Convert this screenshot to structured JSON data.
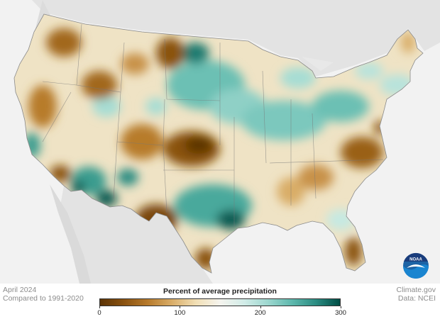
{
  "header": {
    "period": "April 2024",
    "comparison": "Compared to 1991-2020"
  },
  "credits": {
    "site": "Climate.gov",
    "source": "Data: NCEI"
  },
  "legend": {
    "title": "Percent of average precipitation",
    "ticks": [
      {
        "label": "0",
        "value": 0
      },
      {
        "label": "100",
        "value": 100
      },
      {
        "label": "200",
        "value": 200
      },
      {
        "label": "300",
        "value": 300
      }
    ],
    "min": 0,
    "max": 300,
    "colors": [
      "#5c3406",
      "#8a5210",
      "#b77b2c",
      "#d9ad68",
      "#f1dfb5",
      "#f5f4ee",
      "#d2ece8",
      "#9dd7cf",
      "#5eb8ad",
      "#2b8c82",
      "#004d45"
    ]
  },
  "logo": {
    "name": "NOAA",
    "text": "NOAA"
  }
}
